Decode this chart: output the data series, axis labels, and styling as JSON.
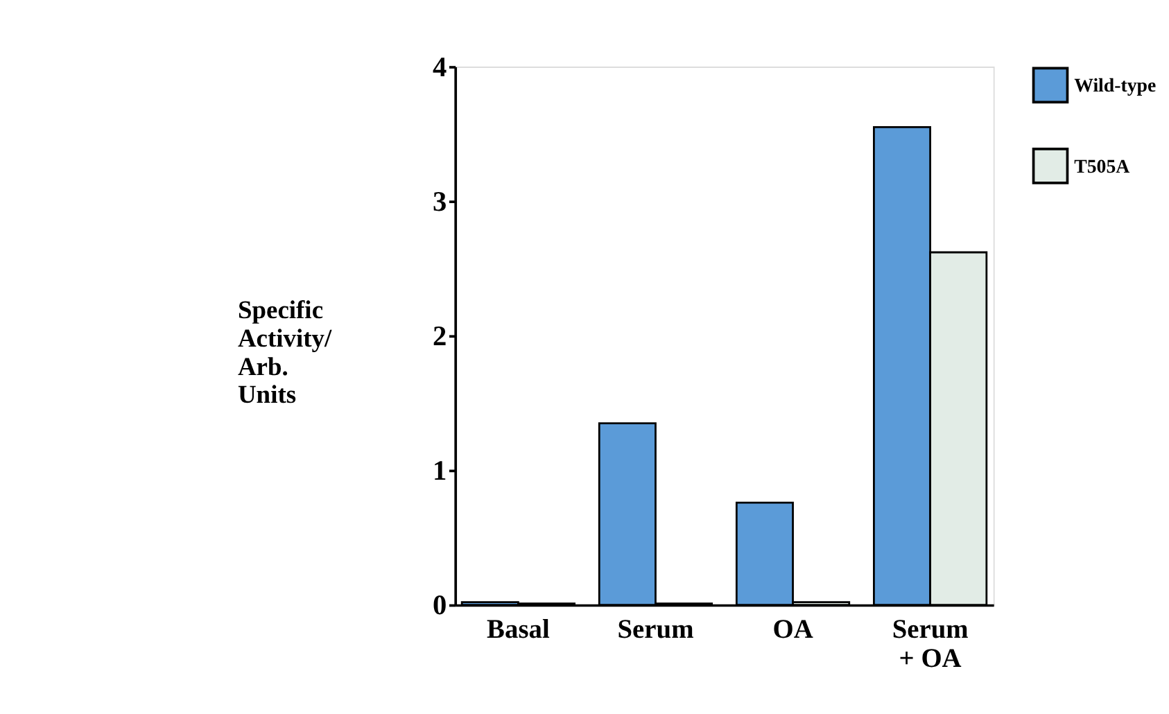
{
  "chart_data": {
    "type": "bar",
    "categories": [
      "Basal",
      "Serum",
      "OA",
      "Serum\n+ OA"
    ],
    "ylabel": "Specific\nActivity/\nArb.\nUnits",
    "series": [
      {
        "name": "Wild-type",
        "color": "#5b9bd8",
        "values": [
          0.02,
          1.35,
          0.76,
          3.55
        ]
      },
      {
        "name": "T505A",
        "color": "#e2ece6",
        "values": [
          0.01,
          0.01,
          0.02,
          2.62
        ]
      }
    ],
    "ylim": [
      0,
      4
    ],
    "yticks": [
      0,
      1,
      2,
      3,
      4
    ],
    "grid": false,
    "legend": "right"
  }
}
